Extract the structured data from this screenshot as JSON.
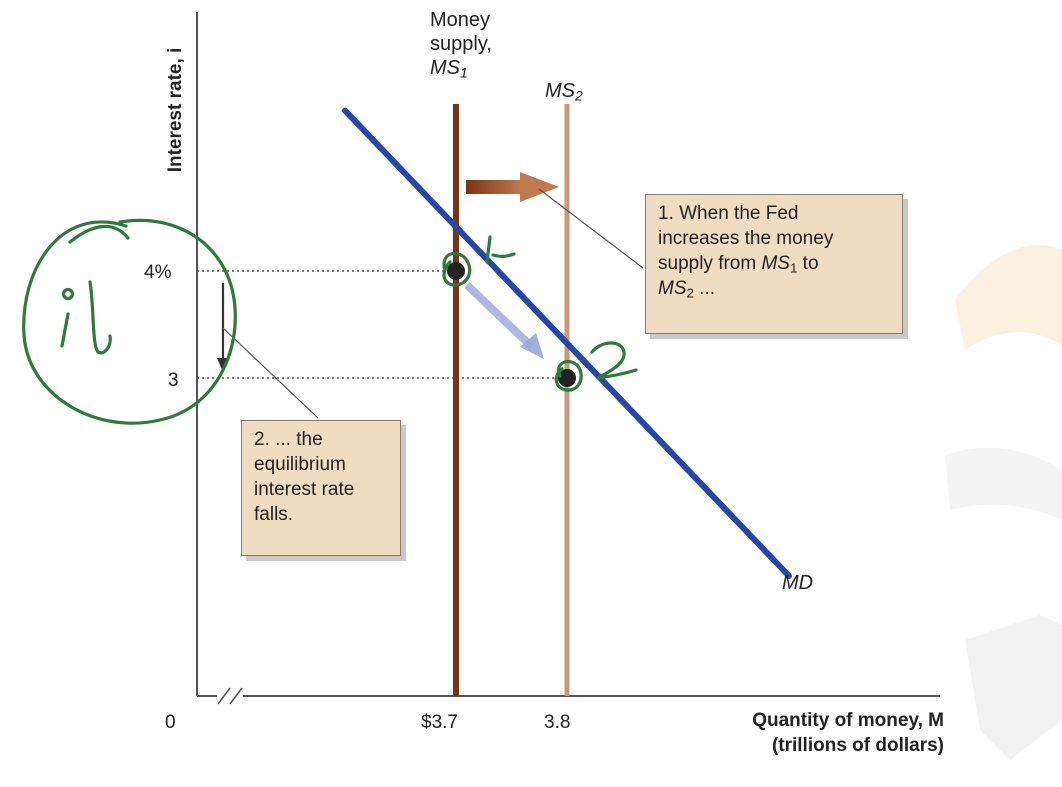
{
  "chart_data": {
    "type": "line",
    "title": "",
    "ylabel": "Interest rate, i",
    "xlabel": "Quantity of money, M",
    "xlabel_units": "(trillions of dollars)",
    "x_origin_label": "0",
    "x_ticks": [
      {
        "value": 3.7,
        "label": "$3.7"
      },
      {
        "value": 3.8,
        "label": "3.8"
      }
    ],
    "y_ticks": [
      {
        "value": 4,
        "label": "4%"
      },
      {
        "value": 3,
        "label": "3"
      }
    ],
    "xlim": [
      3.6,
      4.05
    ],
    "ylim": [
      0,
      6.7
    ],
    "axis_break": "x",
    "series": [
      {
        "name": "MD",
        "type": "line",
        "points": [
          [
            3.6,
            5.5
          ],
          [
            4.0,
            1.15
          ]
        ],
        "color": "#2747a8"
      },
      {
        "name": "MS1",
        "type": "vertical",
        "x": 3.7,
        "color": "#7a3415"
      },
      {
        "name": "MS2",
        "type": "vertical",
        "x": 3.8,
        "color": "#c9977a"
      }
    ],
    "equilibria": [
      {
        "x": 3.7,
        "y": 4
      },
      {
        "x": 3.8,
        "y": 3
      }
    ],
    "labels": {
      "ms1_line1": "Money",
      "ms1_line2": "supply,",
      "ms1_name": "MS",
      "ms1_sub": "1",
      "ms2_name": "MS",
      "ms2_sub": "2",
      "md": "MD"
    },
    "annotations": {
      "note1_line1": "1. When the Fed",
      "note1_line2": "increases the money",
      "note1_line3a": "supply from ",
      "note1_line3_ms": "MS",
      "note1_line3_sub": "1",
      "note1_line3b": " to",
      "note1_line4_ms": "MS",
      "note1_line4_sub": "2",
      "note1_line4b": " ...",
      "note2_line1": "2. ... the",
      "note2_line2": "equilibrium",
      "note2_line3": "interest rate",
      "note2_line4": "falls."
    },
    "handwritten": {
      "circle_text": "i",
      "point1": "1",
      "point2": "2"
    }
  }
}
